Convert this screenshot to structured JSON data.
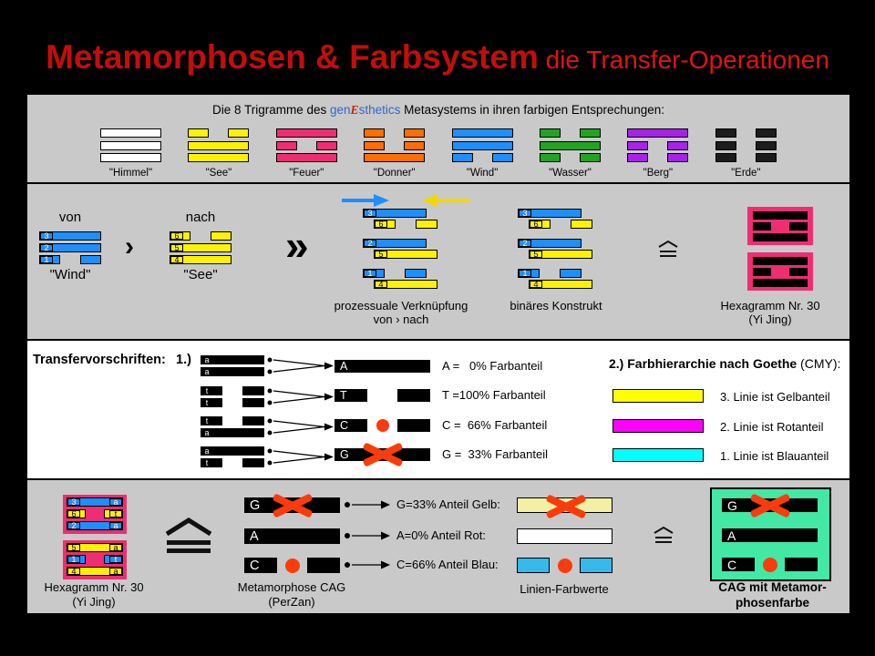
{
  "title": {
    "main": "Metamorphosen & Farbsystem",
    "sub": " die Transfer-Operationen"
  },
  "colors": {
    "panel_gray": "#C9C9C9",
    "panel_white": "#FFFFFF",
    "title_red": "#C30D0D",
    "subtitle_red": "#DE1414",
    "brand_blue": "#3366CC",
    "brand_red": "#CC2200",
    "blue": "#1E8FFF",
    "yellow": "#FFF200",
    "arrow_yellow": "#F2D800",
    "pink": "#EE2D72",
    "orange": "#FF6E00",
    "green": "#22A422",
    "purple": "#A822E8",
    "white": "#FFFFFF",
    "dark": "#1C1C1C",
    "yellow_pure": "#FFFF00",
    "magenta": "#FF00FF",
    "cyan": "#00FFFF",
    "pale_yellow": "#F3F0A5",
    "light_blue": "#36B9ED",
    "spring_green": "#42E8A4",
    "marker_red": "#FA3C0C"
  },
  "panel1": {
    "caption_pre": "Die 8 Trigramme des ",
    "brand_gen": "gen",
    "brand_e": "E",
    "brand_rest": "sthetics",
    "caption_post": " Metasystems in ihren farbigen Entsprechungen:",
    "trigrams": [
      {
        "label": "\"Himmel\"",
        "color_key": "white",
        "lines": [
          "solid",
          "solid",
          "solid"
        ]
      },
      {
        "label": "\"See\"",
        "color_key": "yellow",
        "lines": [
          "broken",
          "solid",
          "solid"
        ]
      },
      {
        "label": "\"Feuer\"",
        "color_key": "pink",
        "lines": [
          "solid",
          "broken",
          "solid"
        ]
      },
      {
        "label": "\"Donner\"",
        "color_key": "orange",
        "lines": [
          "broken",
          "broken",
          "solid"
        ]
      },
      {
        "label": "\"Wind\"",
        "color_key": "blue",
        "lines": [
          "solid",
          "solid",
          "broken"
        ]
      },
      {
        "label": "\"Wasser\"",
        "color_key": "green",
        "lines": [
          "broken",
          "solid",
          "broken"
        ]
      },
      {
        "label": "\"Berg\"",
        "color_key": "purple",
        "lines": [
          "solid",
          "broken",
          "broken"
        ]
      },
      {
        "label": "\"Erde\"",
        "color_key": "dark",
        "lines": [
          "broken",
          "broken",
          "broken"
        ]
      }
    ]
  },
  "panel2": {
    "von": "von",
    "nach": "nach",
    "chevron": "›",
    "chevron2": "»",
    "wind": {
      "label": "\"Wind\"",
      "color_key": "blue",
      "lines": [
        {
          "num": "3",
          "type": "solid"
        },
        {
          "num": "2",
          "type": "solid"
        },
        {
          "num": "1",
          "type": "broken"
        }
      ]
    },
    "see": {
      "label": "\"See\"",
      "color_key": "yellow",
      "lines": [
        {
          "num": "6",
          "type": "broken"
        },
        {
          "num": "5",
          "type": "solid"
        },
        {
          "num": "4",
          "type": "solid"
        }
      ]
    },
    "stack_lines": [
      {
        "num": "3",
        "color_key": "blue",
        "type": "solid"
      },
      {
        "num": "6",
        "color_key": "yellow",
        "type": "broken"
      },
      {
        "num": "2",
        "color_key": "blue",
        "type": "solid"
      },
      {
        "num": "5",
        "color_key": "yellow",
        "type": "solid"
      },
      {
        "num": "1",
        "color_key": "blue",
        "type": "broken"
      },
      {
        "num": "4",
        "color_key": "yellow",
        "type": "solid"
      }
    ],
    "caption_process_1": "prozessuale Verknüpfung",
    "caption_process_2": "von › nach",
    "caption_binary": "binäres Konstrukt",
    "hex30_pattern": [
      "solid",
      "broken",
      "solid"
    ],
    "hex30_label_1": "Hexagramm Nr. 30",
    "hex30_label_2": "(Yi Jing)"
  },
  "panel3": {
    "heading": "Transfervorschriften:",
    "step_label": "1.)",
    "pairs": [
      {
        "top": {
          "letter": "a",
          "type": "solid"
        },
        "bottom": {
          "letter": "a",
          "type": "solid"
        }
      },
      {
        "top": {
          "letter": "t",
          "type": "broken"
        },
        "bottom": {
          "letter": "t",
          "type": "broken"
        }
      },
      {
        "top": {
          "letter": "t",
          "type": "broken"
        },
        "bottom": {
          "letter": "a",
          "type": "solid"
        }
      },
      {
        "top": {
          "letter": "a",
          "type": "solid"
        },
        "bottom": {
          "letter": "t",
          "type": "broken"
        }
      }
    ],
    "results": [
      {
        "letter": "A",
        "type": "solid",
        "marker": "none",
        "label": "A =   0% Farbanteil"
      },
      {
        "letter": "T",
        "type": "broken",
        "marker": "none",
        "label": "T =100% Farbanteil"
      },
      {
        "letter": "C",
        "type": "broken",
        "marker": "dot",
        "label": "C =  66% Farbanteil"
      },
      {
        "letter": "G",
        "type": "solid",
        "marker": "cross",
        "label": "G =  33% Farbanteil"
      }
    ],
    "goethe_heading_bold": "2.) Farbhierarchie nach Goethe",
    "goethe_heading_normal": " (CMY):",
    "legend": [
      {
        "color_key": "yellow_pure",
        "label": "3. Linie ist Gelbanteil"
      },
      {
        "color_key": "magenta",
        "label": "2. Linie ist Rotanteil"
      },
      {
        "color_key": "cyan",
        "label": "1. Linie ist Blauanteil"
      }
    ]
  },
  "panel4": {
    "hex_blocks": [
      {
        "bg_key": "pink",
        "lines": [
          {
            "num": "3",
            "letter": "a",
            "color_key": "blue",
            "type": "solid"
          },
          {
            "num": "6",
            "letter": "t",
            "color_key": "yellow",
            "type": "broken"
          },
          {
            "num": "2",
            "letter": "a",
            "color_key": "blue",
            "type": "solid"
          }
        ]
      },
      {
        "bg_key": "pink",
        "lines": [
          {
            "num": "5",
            "letter": "a",
            "color_key": "yellow",
            "type": "solid"
          },
          {
            "num": "1",
            "letter": "t",
            "color_key": "blue",
            "type": "broken"
          },
          {
            "num": "4",
            "letter": "a",
            "color_key": "yellow",
            "type": "solid"
          }
        ]
      }
    ],
    "hex30_label_1": "Hexagramm Nr. 30",
    "hex30_label_2": "(Yi Jing)",
    "cag_lines": [
      {
        "letter": "G",
        "type": "solid",
        "marker": "cross",
        "label": "G=33% Anteil Gelb:"
      },
      {
        "letter": "A",
        "type": "solid",
        "marker": "none",
        "label": "A=0% Anteil Rot:"
      },
      {
        "letter": "C",
        "type": "broken",
        "marker": "dot",
        "label": "C=66% Anteil Blau:"
      }
    ],
    "cag_label_1": "Metamorphose CAG",
    "cag_label_2": "(PerZan)",
    "farbwerte_bars": [
      {
        "color_key": "pale_yellow",
        "type": "solid",
        "marker": "cross"
      },
      {
        "color_key": "white",
        "type": "solid",
        "marker": "none"
      },
      {
        "color_key": "light_blue",
        "type": "broken",
        "marker": "dot"
      }
    ],
    "farbwerte_label": "Linien-Farbwerte",
    "result_label_1": "CAG mit Metamor-",
    "result_label_2": "phosenfarbe",
    "result_bg_key": "spring_green"
  }
}
